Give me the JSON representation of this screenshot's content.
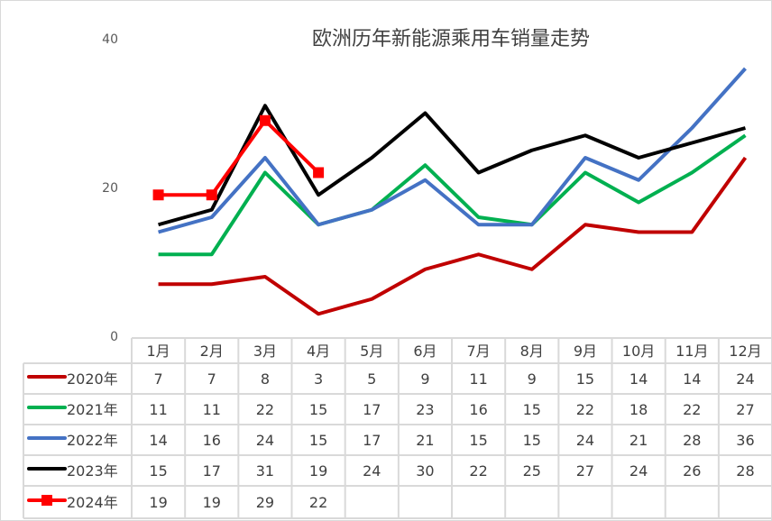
{
  "chart_data": {
    "type": "line",
    "title": "欧洲历年新能源乘用车销量走势",
    "categories": [
      "1月",
      "2月",
      "3月",
      "4月",
      "5月",
      "6月",
      "7月",
      "8月",
      "9月",
      "10月",
      "11月",
      "12月"
    ],
    "yticks": [
      "0",
      "20",
      "40"
    ],
    "ylim": [
      0,
      40
    ],
    "grid": false,
    "legend": "data-table",
    "series": [
      {
        "name": "2020年",
        "color": "#C00000",
        "marker": "none",
        "values": [
          7,
          7,
          8,
          3,
          5,
          9,
          11,
          9,
          15,
          14,
          14,
          24
        ]
      },
      {
        "name": "2021年",
        "color": "#00B050",
        "marker": "none",
        "values": [
          11,
          11,
          22,
          15,
          17,
          23,
          16,
          15,
          22,
          18,
          22,
          27
        ]
      },
      {
        "name": "2022年",
        "color": "#4472C4",
        "marker": "none",
        "values": [
          14,
          16,
          24,
          15,
          17,
          21,
          15,
          15,
          24,
          21,
          28,
          36
        ]
      },
      {
        "name": "2023年",
        "color": "#000000",
        "marker": "none",
        "values": [
          15,
          17,
          31,
          19,
          24,
          30,
          22,
          25,
          27,
          24,
          26,
          28
        ]
      },
      {
        "name": "2024年",
        "color": "#FF0000",
        "marker": "square",
        "values": [
          19,
          19,
          29,
          22,
          null,
          null,
          null,
          null,
          null,
          null,
          null,
          null
        ]
      }
    ]
  }
}
